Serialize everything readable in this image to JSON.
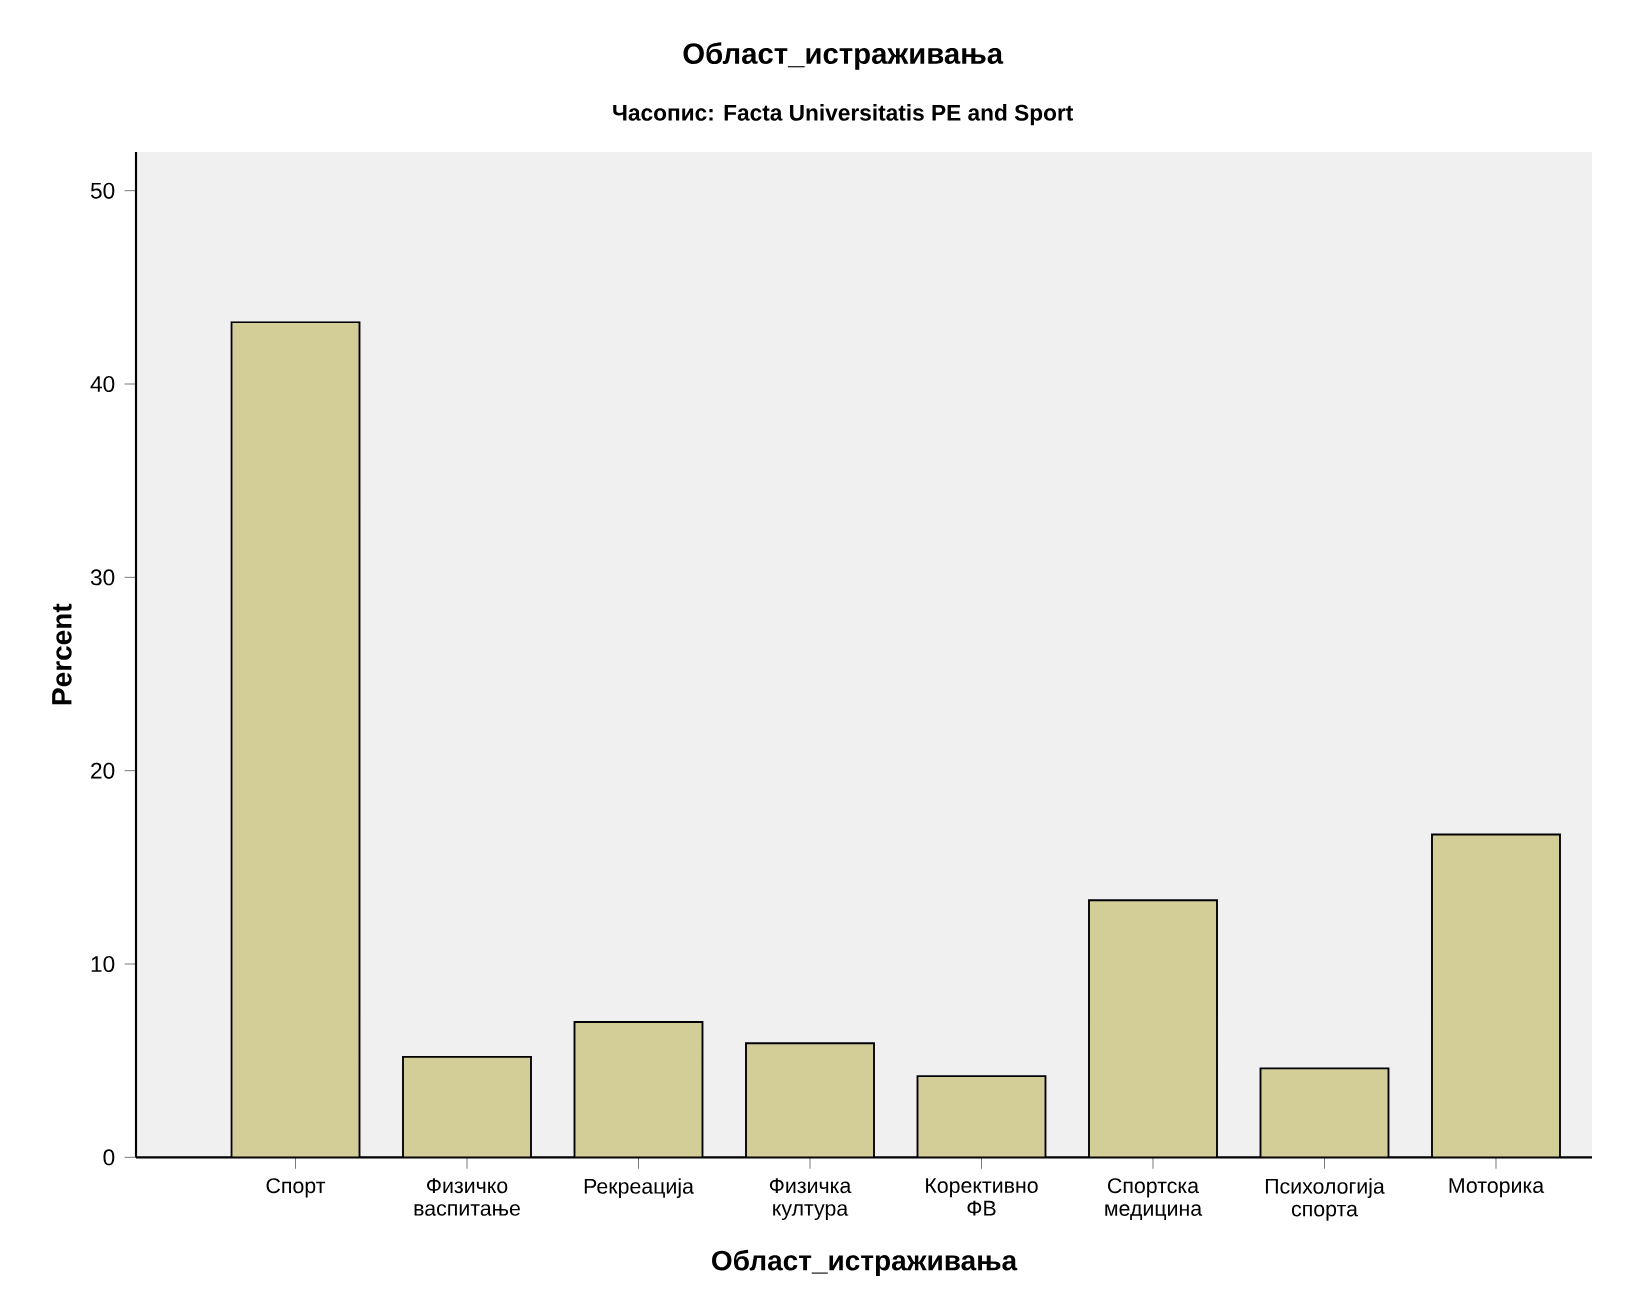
{
  "chart_data": {
    "type": "bar",
    "title": "Област_истраживања",
    "subtitle": "Часопис: Facta Universitatis PE and Sport",
    "xlabel": "Област_истраживања",
    "ylabel": "Percent",
    "categories": [
      "Спорт",
      "Физичко васпитање",
      "Рекреација",
      "Физичка култура",
      "Корективно ФВ",
      "Спортска медицина",
      "Психологија спорта",
      "Моторика"
    ],
    "values": [
      43.2,
      5.2,
      7.0,
      5.9,
      4.2,
      13.3,
      4.6,
      16.7
    ],
    "color": "#d3cd98",
    "ylim": [
      0,
      52
    ],
    "yticks": [
      0,
      10,
      20,
      30,
      40,
      50
    ]
  }
}
